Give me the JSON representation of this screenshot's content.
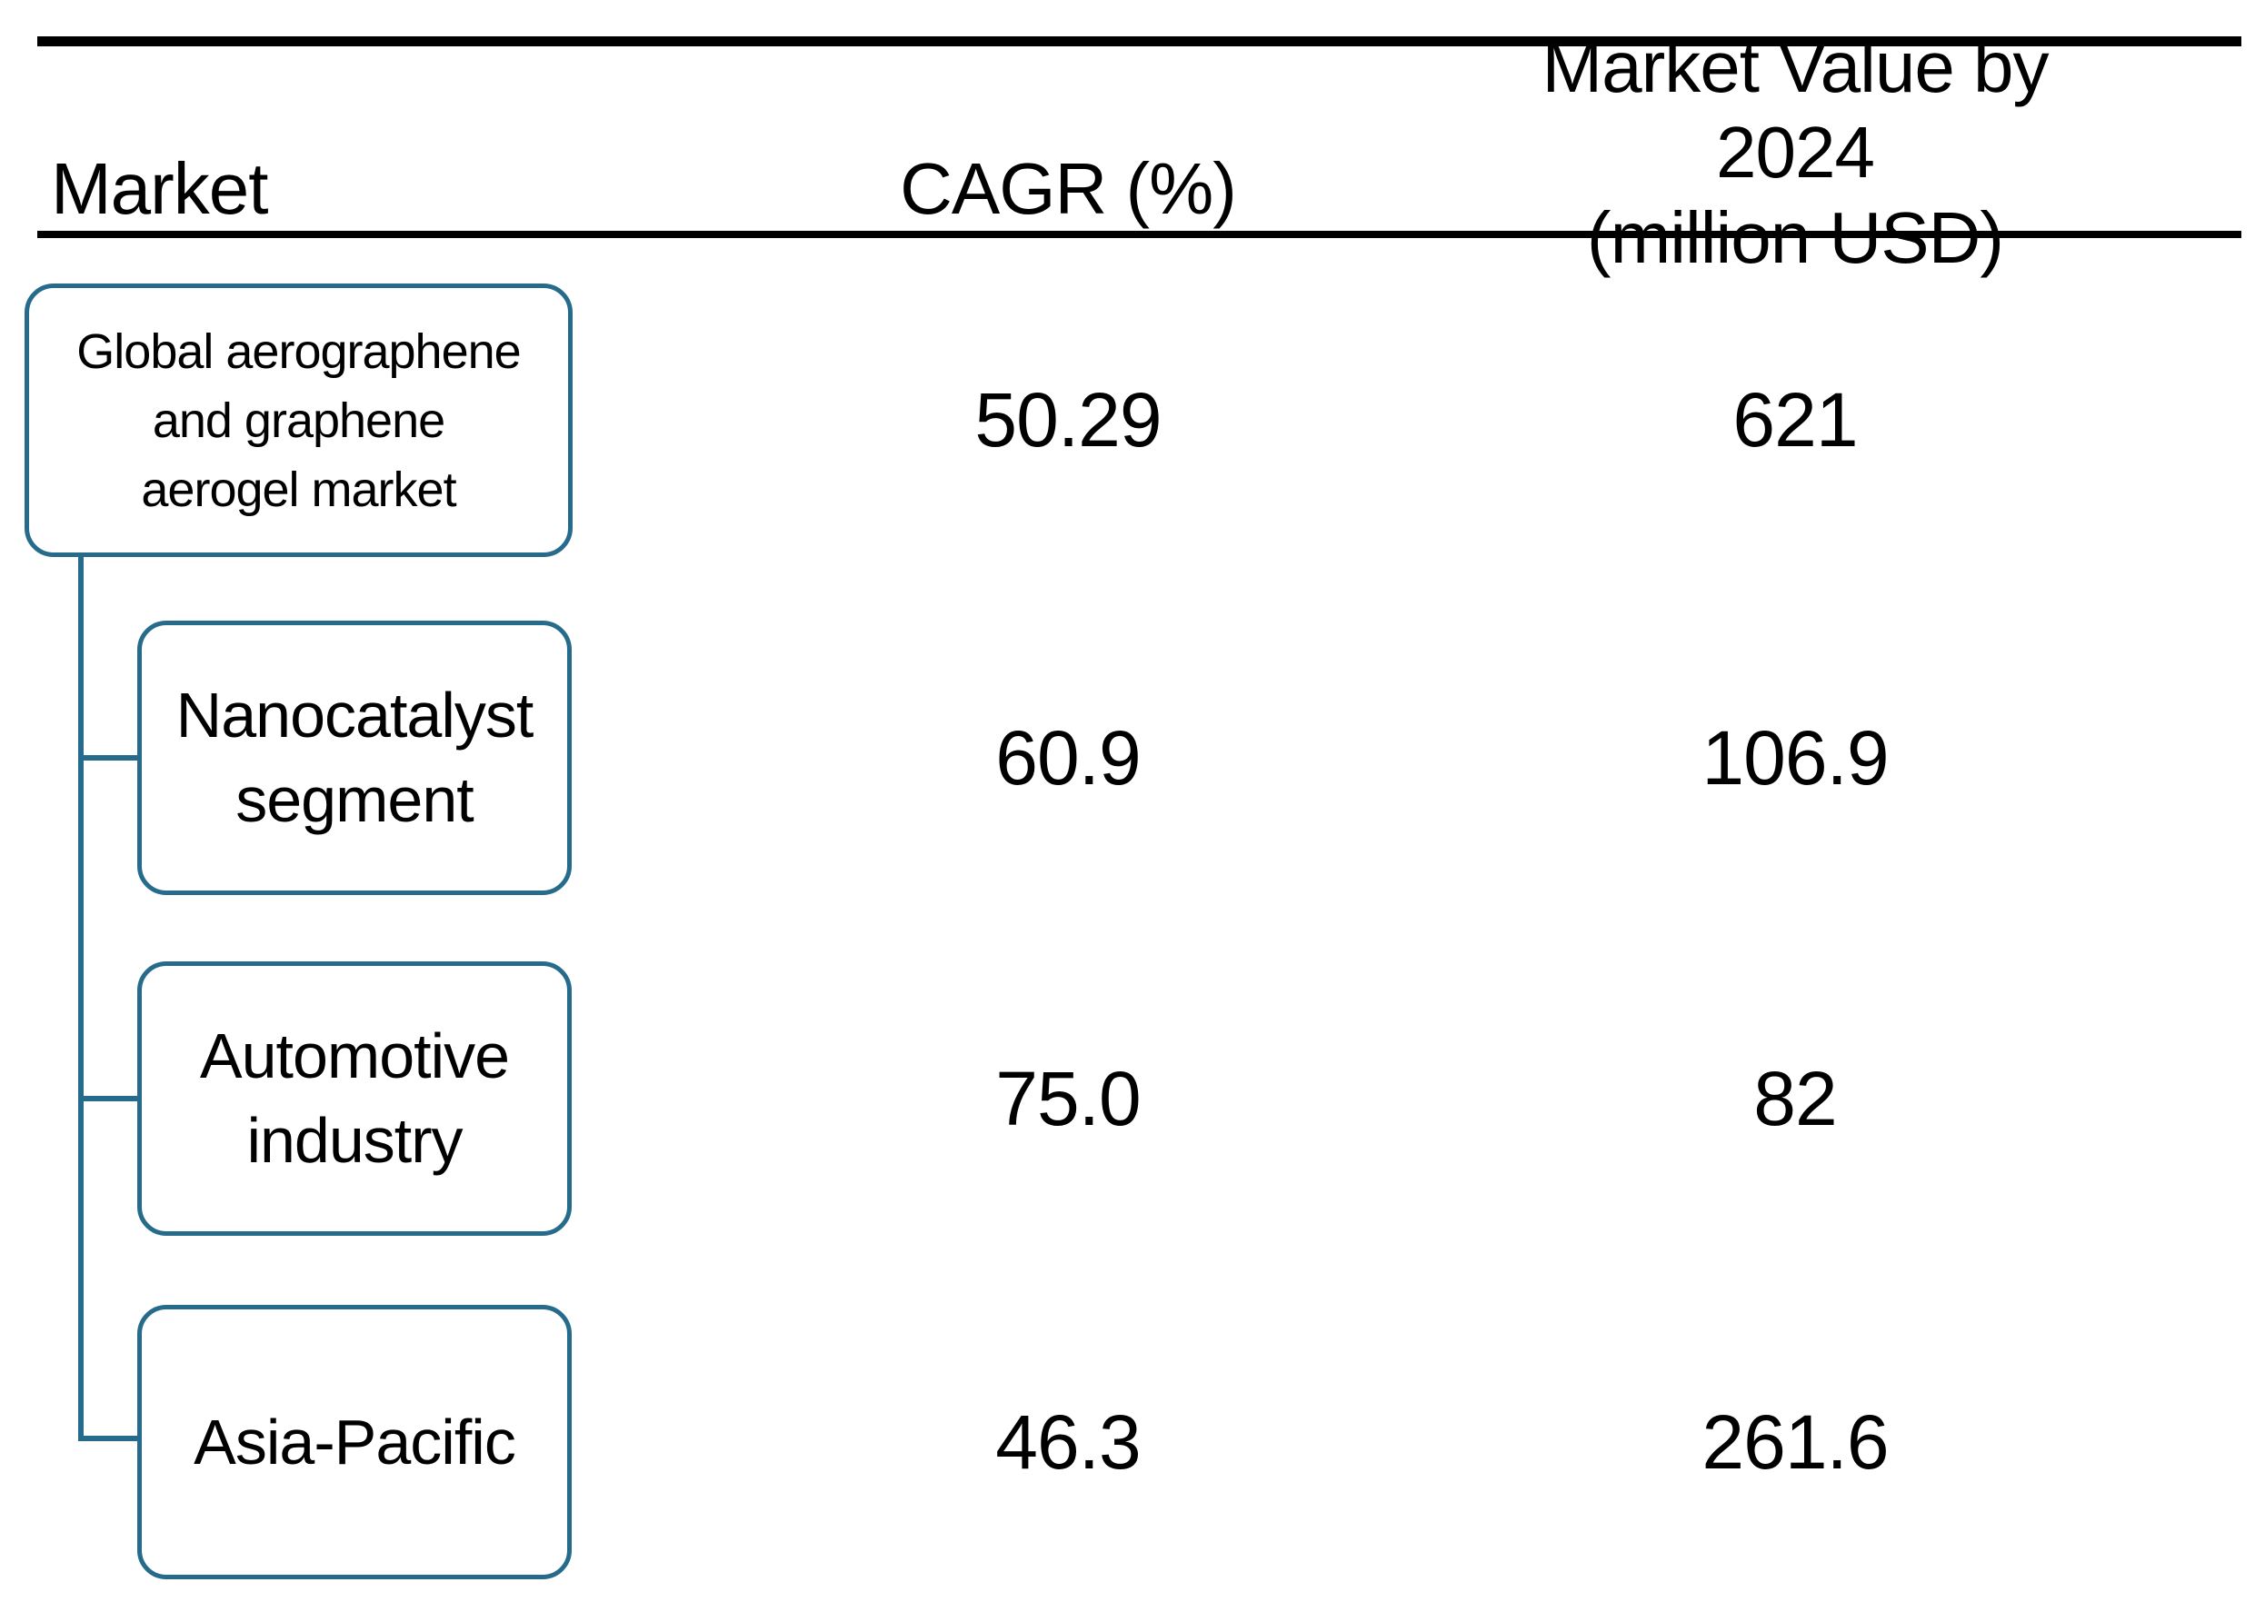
{
  "colors": {
    "accent": "#266b8c",
    "text": "#000000",
    "rule": "#000000",
    "background": "#ffffff"
  },
  "header": {
    "col1": "Market",
    "col2": "CAGR (%)",
    "col3_line1": "Market Value by 2024",
    "col3_line2": "(million USD)"
  },
  "rows": [
    {
      "label": "Global aerographene\nand graphene\naerogel market",
      "market": "Global aerographene and graphene aerogel market",
      "cagr": "50.29",
      "value": "621",
      "level": "root"
    },
    {
      "label": "Nanocatalyst\nsegment",
      "market": "Nanocatalyst segment",
      "cagr": "60.9",
      "value": "106.9",
      "level": "child"
    },
    {
      "label": "Automotive\nindustry",
      "market": "Automotive industry",
      "cagr": "75.0",
      "value": "82",
      "level": "child"
    },
    {
      "label": "Asia-Pacific",
      "market": "Asia-Pacific",
      "cagr": "46.3",
      "value": "261.6",
      "level": "child"
    }
  ],
  "chart_data": {
    "type": "table",
    "columns": [
      "Market",
      "CAGR (%)",
      "Market Value by 2024 (million USD)"
    ],
    "rows": [
      [
        "Global aerographene and graphene aerogel market",
        50.29,
        621
      ],
      [
        "Nanocatalyst segment",
        60.9,
        106.9
      ],
      [
        "Automotive industry",
        75.0,
        82
      ],
      [
        "Asia-Pacific",
        46.3,
        261.6
      ]
    ],
    "hierarchy": {
      "root": "Global aerographene and graphene aerogel market",
      "children": [
        "Nanocatalyst segment",
        "Automotive industry",
        "Asia-Pacific"
      ]
    }
  }
}
